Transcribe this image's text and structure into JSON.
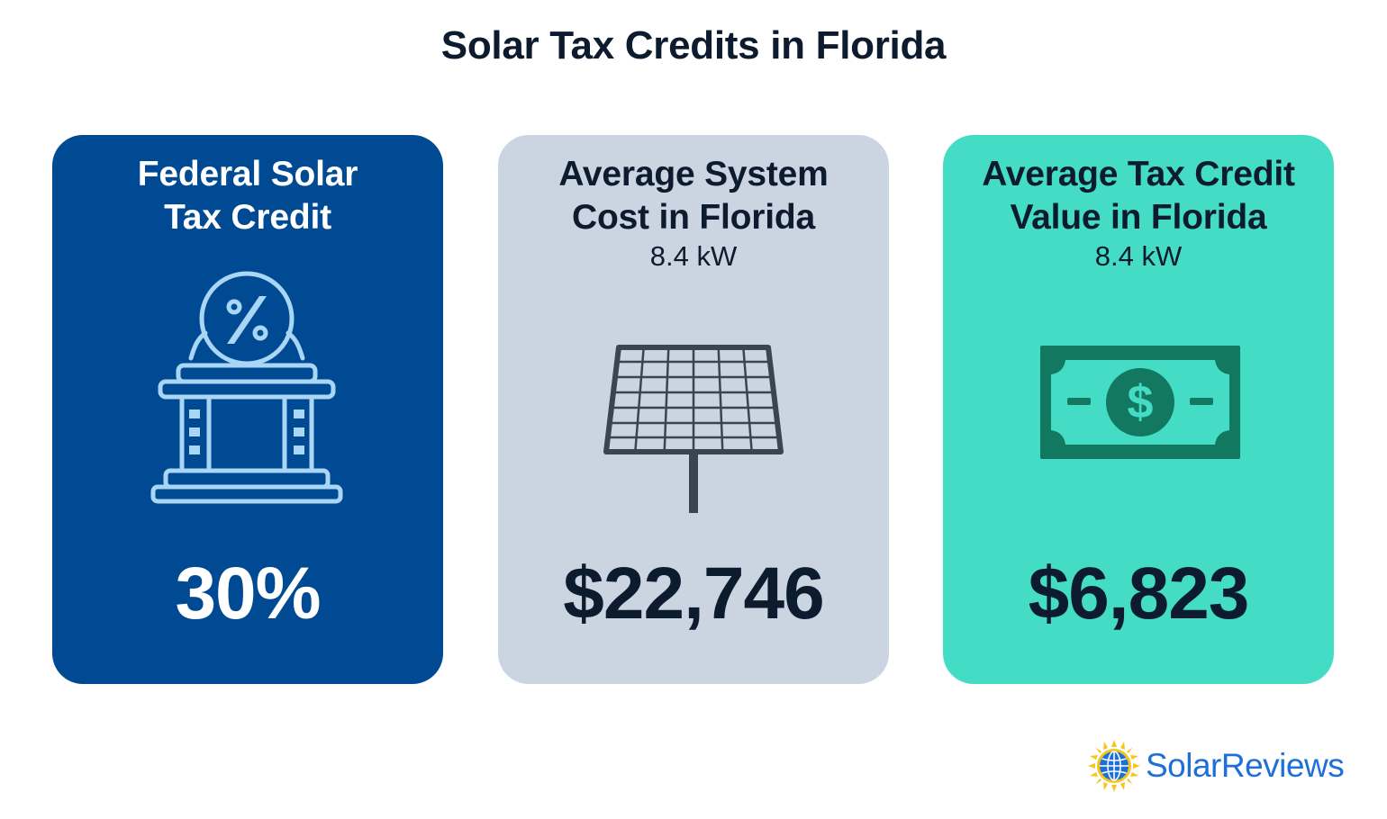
{
  "title": "Solar Tax Credits in Florida",
  "cards": [
    {
      "heading_line1": "Federal Solar",
      "heading_line2": "Tax Credit",
      "subtitle": "",
      "icon": "bank-percent-icon",
      "value": "30%",
      "background": "#004a94"
    },
    {
      "heading_line1": "Average System",
      "heading_line2": "Cost in Florida",
      "subtitle": "8.4 kW",
      "icon": "solar-panel-icon",
      "value": "$22,746",
      "background": "#cbd5e1"
    },
    {
      "heading_line1": "Average Tax Credit",
      "heading_line2": "Value in Florida",
      "subtitle": "8.4 kW",
      "icon": "dollar-bill-icon",
      "value": "$6,823",
      "background": "#44dcc4"
    }
  ],
  "logo": {
    "text": "SolarReviews",
    "icon": "sun-globe-icon",
    "color": "#1e6fd9"
  }
}
